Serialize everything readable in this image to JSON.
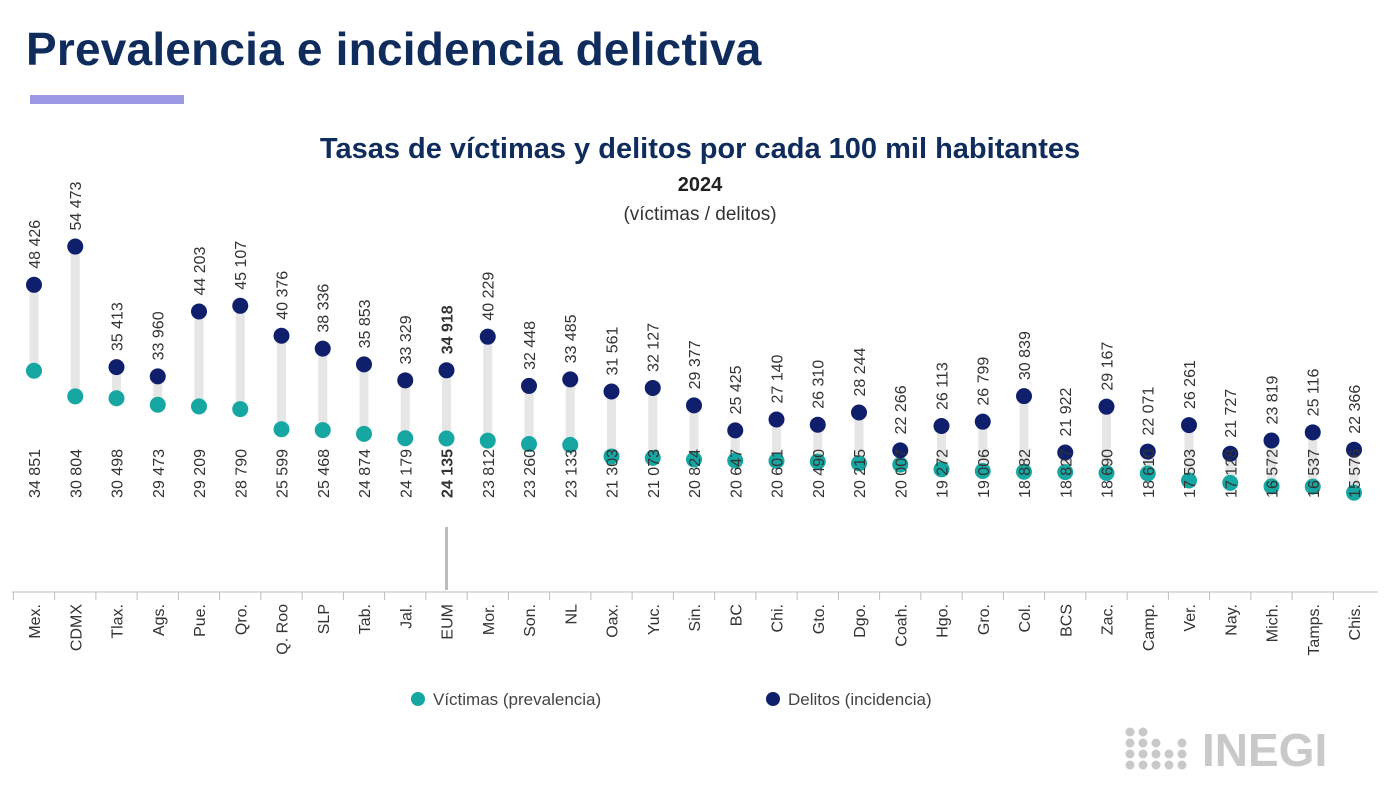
{
  "header": {
    "title": "Prevalencia e incidencia delictiva"
  },
  "colors": {
    "title": "#0f2c5c",
    "accent_bar": "#9c99e4",
    "victimas": "#17a7a3",
    "delitos": "#0f1f6b",
    "connector": "#e6e6e6",
    "text": "#333333",
    "logo": "#c9c9c9"
  },
  "logo": {
    "text": "INEGI"
  },
  "chart_data": {
    "type": "dumbbell",
    "title": "Tasas de víctimas y delitos por cada 100 mil habitantes",
    "subtitle": "2024",
    "note": "(víctimas / delitos)",
    "legend_position": "bottom-center",
    "grid": false,
    "y_range": [
      14000,
      56000
    ],
    "highlight_category": "EUM",
    "categories": [
      "Mex.",
      "CDMX",
      "Tlax.",
      "Ags.",
      "Pue.",
      "Qro.",
      "Q. Roo",
      "SLP",
      "Tab.",
      "Jal.",
      "EUM",
      "Mor.",
      "Son.",
      "NL",
      "Oax.",
      "Yuc.",
      "Sin.",
      "BC",
      "Chi.",
      "Gto.",
      "Dgo.",
      "Coah.",
      "Hgo.",
      "Gro.",
      "Col.",
      "BCS",
      "Zac.",
      "Camp.",
      "Ver.",
      "Nay.",
      "Mich.",
      "Tamps.",
      "Chis."
    ],
    "series": [
      {
        "name": "Víctimas (prevalencia)",
        "values": [
          34851,
          30804,
          30498,
          29473,
          29209,
          28790,
          25599,
          25468,
          24874,
          24179,
          24135,
          23812,
          23260,
          23133,
          21303,
          21073,
          20824,
          20647,
          20601,
          20490,
          20215,
          20007,
          19272,
          19006,
          18882,
          18827,
          18690,
          18610,
          17503,
          17128,
          16572,
          16537,
          15576
        ],
        "labels": [
          "34 851",
          "30 804",
          "30 498",
          "29 473",
          "29 209",
          "28 790",
          "25 599",
          "25 468",
          "24 874",
          "24 179",
          "24 135",
          "23 812",
          "23 260",
          "23 133",
          "21 303",
          "21 073",
          "20 824",
          "20 647",
          "20 601",
          "20 490",
          "20 215",
          "20 007",
          "19 272",
          "19 006",
          "18 882",
          "18 827",
          "18 690",
          "18 610",
          "17 503",
          "17 128",
          "16 572",
          "16 537",
          "15 576"
        ]
      },
      {
        "name": "Delitos (incidencia)",
        "values": [
          48426,
          54473,
          35413,
          33960,
          44203,
          45107,
          40376,
          38336,
          35853,
          33329,
          34918,
          40229,
          32448,
          33485,
          31561,
          32127,
          29377,
          25425,
          27140,
          26310,
          28244,
          22266,
          26113,
          26799,
          30839,
          21922,
          29167,
          22071,
          26261,
          21727,
          23819,
          25116,
          22366
        ],
        "labels": [
          "48 426",
          "54 473",
          "35 413",
          "33 960",
          "44 203",
          "45 107",
          "40 376",
          "38 336",
          "35 853",
          "33 329",
          "34 918",
          "40 229",
          "32 448",
          "33 485",
          "31 561",
          "32 127",
          "29 377",
          "25 425",
          "27 140",
          "26 310",
          "28 244",
          "22 266",
          "26 113",
          "26 799",
          "30 839",
          "21 922",
          "29 167",
          "22 071",
          "26 261",
          "21 727",
          "23 819",
          "25 116",
          "22 366"
        ]
      }
    ]
  }
}
